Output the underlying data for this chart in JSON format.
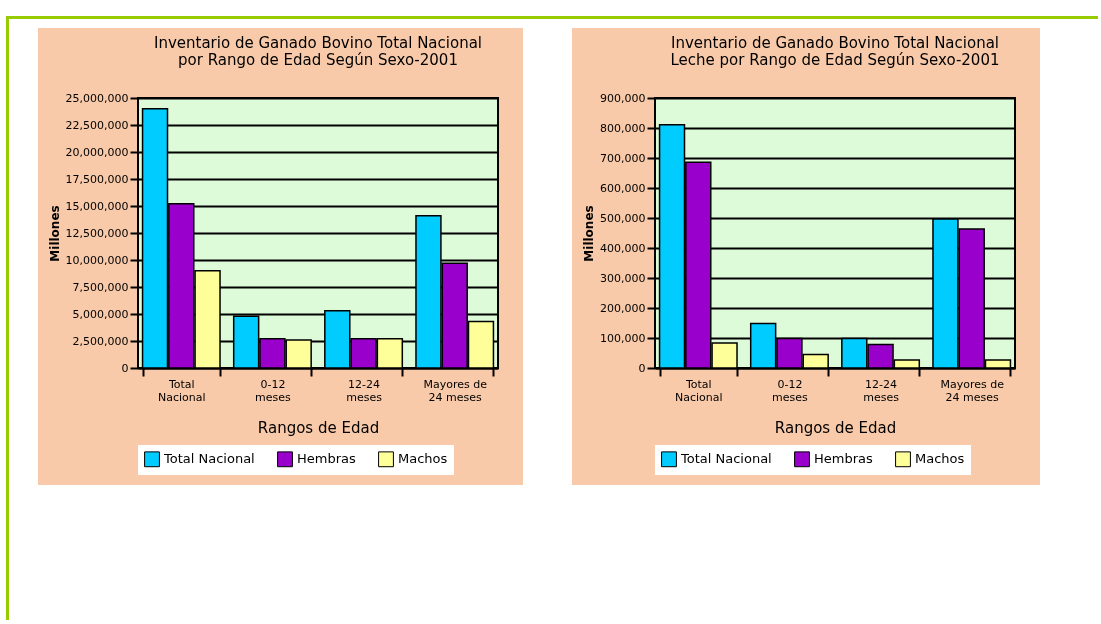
{
  "chart_data": [
    {
      "type": "bar",
      "title": "Inventario de Ganado Bovino Total Nacional por Rango de Edad Según Sexo-2001",
      "xlabel": "Rangos de Edad",
      "ylabel": "Millones",
      "categories": [
        "Total Nacional",
        "0-12 meses",
        "12-24 meses",
        "Mayores de 24 meses"
      ],
      "series": [
        {
          "name": "Total Nacional",
          "color": "#00ccff",
          "values": [
            24000000,
            4800000,
            5300000,
            14100000
          ]
        },
        {
          "name": "Hembras",
          "color": "#9900cc",
          "values": [
            15200000,
            2700000,
            2700000,
            9700000
          ]
        },
        {
          "name": "Machos",
          "color": "#ffff99",
          "values": [
            9000000,
            2600000,
            2700000,
            4300000
          ]
        }
      ],
      "ylim": [
        0,
        25000000
      ],
      "yticks": [
        0,
        {
          "value": 2500000,
          "label": "2,500,000"
        },
        {
          "value": 5000000,
          "label": "5,000,000"
        },
        {
          "value": 7500000,
          "label": "7,500,000"
        },
        {
          "value": 10000000,
          "label": "10,000,000"
        },
        {
          "value": 12500000,
          "label": "12,500,000"
        },
        {
          "value": 15000000,
          "label": "15,000,000"
        },
        {
          "value": 17500000,
          "label": "17,500,000"
        },
        {
          "value": 20000000,
          "label": "20,000,000"
        },
        {
          "value": 22500000,
          "label": "22,500,000"
        },
        {
          "value": 25000000,
          "label": "25,000,000"
        }
      ],
      "grid": "y",
      "legend": "bottom"
    },
    {
      "type": "bar",
      "title": "Inventario de Ganado Bovino Total Nacional Leche por Rango de Edad Según Sexo-2001",
      "xlabel": "Rangos de Edad",
      "ylabel": "Millones",
      "categories": [
        "Total Nacional",
        "0-12 meses",
        "12-24 meses",
        "Mayores de 24 meses"
      ],
      "series": [
        {
          "name": "Total Nacional",
          "color": "#00ccff",
          "values": [
            811000,
            148000,
            98000,
            497000
          ]
        },
        {
          "name": "Hembras",
          "color": "#9900cc",
          "values": [
            686000,
            98000,
            78000,
            463000
          ]
        },
        {
          "name": "Machos",
          "color": "#ffff99",
          "values": [
            83000,
            45000,
            27000,
            27000
          ]
        }
      ],
      "ylim": [
        0,
        900000
      ],
      "yticks": [
        0,
        {
          "value": 100000,
          "label": "100,000"
        },
        {
          "value": 200000,
          "label": "200,000"
        },
        {
          "value": 300000,
          "label": "300,000"
        },
        {
          "value": 400000,
          "label": "400,000"
        },
        {
          "value": 500000,
          "label": "500,000"
        },
        {
          "value": 600000,
          "label": "600,000"
        },
        {
          "value": 700000,
          "label": "700,000"
        },
        {
          "value": 800000,
          "label": "800,000"
        },
        {
          "value": 900000,
          "label": "900,000"
        }
      ],
      "grid": "y",
      "legend": "bottom"
    }
  ]
}
